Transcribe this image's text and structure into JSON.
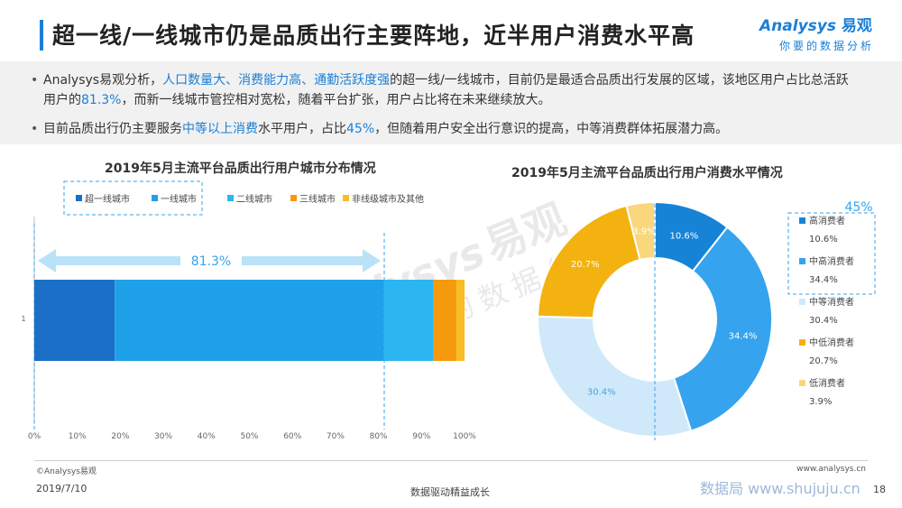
{
  "header": {
    "title": "超一线/一线城市仍是品质出行主要阵地，近半用户消费水平高",
    "logo_main": "nalysys",
    "logo_a": "A",
    "logo_cn": "易观",
    "logo_sub": "你要的数据分析"
  },
  "summary": {
    "bullet1": {
      "p1": "Analysys易观分析，",
      "h1": "人口数量大、消费能力高、通勤活跃度强",
      "p2": "的超一线/一线城市，目前仍是最适合品质出行发展的区域，该地区用户占比总活跃用户的",
      "h2": "81.3%",
      "p3": "，而新一线城市管控相对宽松，随着平台扩张，用户占比将在未来继续放大。"
    },
    "bullet2": {
      "p1": "目前品质出行仍主要服务",
      "h1": "中等以上消费",
      "p2": "水平用户，占比",
      "h2": "45%",
      "p3": "，但随着用户安全出行意识的提高，中等消费群体拓展潜力高。"
    }
  },
  "chart_data": [
    {
      "type": "bar",
      "orientation": "horizontal",
      "stacked": true,
      "title": "2019年5月主流平台品质出行用户城市分布情况",
      "categories": [
        "1"
      ],
      "series": [
        {
          "name": "超一线城市",
          "values": [
            18.7
          ],
          "color": "#1b6fc7"
        },
        {
          "name": "一线城市",
          "values": [
            62.6
          ],
          "color": "#1ea1e8"
        },
        {
          "name": "二线城市",
          "values": [
            11.5
          ],
          "color": "#2bb6f2"
        },
        {
          "name": "三线城市",
          "values": [
            5.3
          ],
          "color": "#f49a0c"
        },
        {
          "name": "非线级城市及其他",
          "values": [
            1.9
          ],
          "color": "#f9bd24"
        }
      ],
      "xlim": [
        0,
        100
      ],
      "x_ticks": [
        "0%",
        "10%",
        "20%",
        "30%",
        "40%",
        "50%",
        "60%",
        "70%",
        "80%",
        "90%",
        "100%"
      ],
      "annotation": "81.3%",
      "legend_position": "top"
    },
    {
      "type": "pie",
      "donut": true,
      "title": "2019年5月主流平台品质出行用户消费水平情况",
      "series": [
        {
          "name": "高消费者",
          "value": 10.6,
          "label": "10.6%",
          "color": "#1783d6"
        },
        {
          "name": "中高消费者",
          "value": 34.4,
          "label": "34.4%",
          "color": "#35a3ee"
        },
        {
          "name": "中等消费者",
          "value": 30.4,
          "label": "30.4%",
          "color": "#cfe9fa"
        },
        {
          "name": "中低消费者",
          "value": 20.7,
          "label": "20.7%",
          "color": "#f3b20f"
        },
        {
          "name": "低消费者",
          "value": 3.9,
          "label": "3.9%",
          "color": "#fad77c"
        }
      ],
      "annotation": "45%",
      "legend_position": "right"
    }
  ],
  "watermark": {
    "brand": "nalysys",
    "cn": "易观",
    "sub": "你要的数据分析"
  },
  "footer": {
    "copyright": "©Analysys易观",
    "website": "www.analysys.cn",
    "date": "2019/7/10",
    "slogan": "数据驱动精益成长",
    "site_watermark": "数据局 www.shujuju.cn",
    "page": "18"
  }
}
